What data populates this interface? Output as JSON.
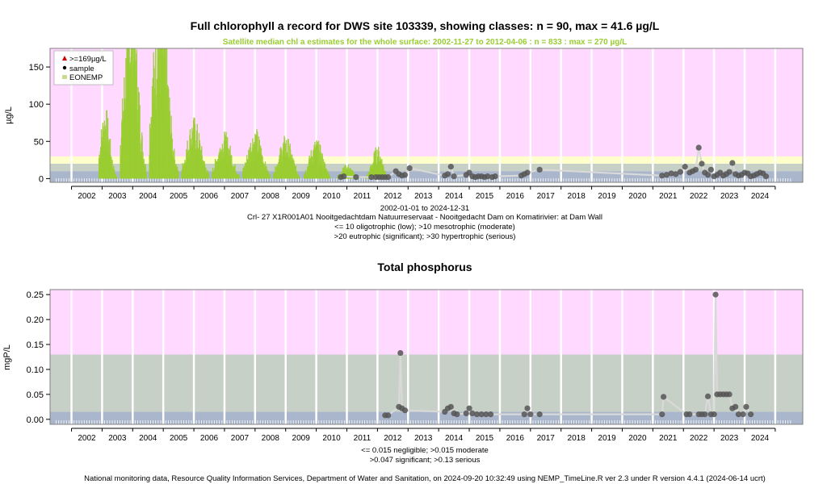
{
  "footer": "National monitoring data, Resource Quality Information Services, Department of Water and Sanitation, on 2024-09-20 10:32:49 using NEMP_TimeLine.R ver 2.3 under R version 4.4.1 (2024-06-14 ucrt)",
  "colors": {
    "background_band": "#ffd9ff",
    "hypertrophic_band": "#ffffcc",
    "oligotrophic_band": "#a9b6cc",
    "moderate_band": "#c7d0c6",
    "satellite": "#9acd32",
    "sample": "#555555",
    "line": "#d9d9d9"
  },
  "chart_data": [
    {
      "type": "line",
      "title": "Full chlorophyll a record for DWS site 103339, showing classes: n = 90, max = 41.6 µg/L",
      "subtitle": "Satellite median chl a estimates for the whole surface: 2002-11-27 to 2012-04-06 : n = 833 : max = 270 µg/L",
      "ylabel": "µg/L",
      "xlim": [
        2001.3,
        2025.9
      ],
      "ylim": [
        -5,
        175
      ],
      "yticks": [
        0,
        50,
        100,
        150
      ],
      "xticks": [
        "2002",
        "2003",
        "2004",
        "2005",
        "2006",
        "2007",
        "2008",
        "2009",
        "2010",
        "2011",
        "2012",
        "2013",
        "2014",
        "2015",
        "2016",
        "2017",
        "2018",
        "2019",
        "2020",
        "2021",
        "2022",
        "2023",
        "2024"
      ],
      "legend": {
        "position": "top-left",
        "items": [
          {
            "label": ">=169µg/L",
            "symbol": "triangle",
            "color": "#cc0000"
          },
          {
            "label": "sample",
            "symbol": "dot",
            "color": "#000000"
          },
          {
            "label": "EONEMP",
            "symbol": "square",
            "color": "#c8dc8c"
          }
        ]
      },
      "class_bands": [
        {
          "from": 0,
          "to": 10,
          "class": "oligotrophic"
        },
        {
          "from": 10,
          "to": 20,
          "class": "mesotrophic"
        },
        {
          "from": 20,
          "to": 30,
          "class": "eutrophic"
        },
        {
          "from": 30,
          "to": 175,
          "class": "hypertrophic"
        }
      ],
      "caption": [
        "2002-01-01 to 2024-12-31",
        "Crl- 27 X1R001A01 Nooitgedachtdam Natuurreservaat - Nooitgedacht Dam on Komatirivier: at Dam Wall",
        "<= 10 oligotrophic (low); >10 mesotrophic (moderate)",
        ">20 eutrophic (significant); >30 hypertrophic (serious)"
      ],
      "satellite_seasons": [
        {
          "start": 2002.9,
          "end": 2003.5,
          "peak": 100,
          "peak_at": 2003.1
        },
        {
          "start": 2003.6,
          "end": 2004.45,
          "peak": 270,
          "peak_at": 2003.95
        },
        {
          "start": 2004.55,
          "end": 2005.5,
          "peak": 270,
          "peak_at": 2004.9
        },
        {
          "start": 2005.6,
          "end": 2006.5,
          "peak": 85,
          "peak_at": 2006.0
        },
        {
          "start": 2006.6,
          "end": 2007.5,
          "peak": 65,
          "peak_at": 2007.0
        },
        {
          "start": 2007.6,
          "end": 2008.5,
          "peak": 70,
          "peak_at": 2008.0
        },
        {
          "start": 2008.6,
          "end": 2009.45,
          "peak": 60,
          "peak_at": 2009.0
        },
        {
          "start": 2009.6,
          "end": 2010.45,
          "peak": 55,
          "peak_at": 2010.0
        },
        {
          "start": 2010.7,
          "end": 2011.4,
          "peak": 20,
          "peak_at": 2011.0
        },
        {
          "start": 2011.6,
          "end": 2012.27,
          "peak": 45,
          "peak_at": 2012.0
        }
      ],
      "samples": [
        {
          "x": 2010.8,
          "y": 2
        },
        {
          "x": 2010.9,
          "y": 3
        },
        {
          "x": 2011.3,
          "y": 2
        },
        {
          "x": 2011.8,
          "y": 2
        },
        {
          "x": 2011.95,
          "y": 2
        },
        {
          "x": 2012.05,
          "y": 2
        },
        {
          "x": 2012.15,
          "y": 2
        },
        {
          "x": 2012.25,
          "y": 2
        },
        {
          "x": 2012.35,
          "y": 2
        },
        {
          "x": 2012.6,
          "y": 10
        },
        {
          "x": 2012.7,
          "y": 6
        },
        {
          "x": 2012.8,
          "y": 4
        },
        {
          "x": 2012.9,
          "y": 5
        },
        {
          "x": 2013.05,
          "y": 14
        },
        {
          "x": 2014.2,
          "y": 4
        },
        {
          "x": 2014.3,
          "y": 6
        },
        {
          "x": 2014.4,
          "y": 16
        },
        {
          "x": 2014.5,
          "y": 3
        },
        {
          "x": 2014.9,
          "y": 5
        },
        {
          "x": 2015.0,
          "y": 8
        },
        {
          "x": 2015.1,
          "y": 3
        },
        {
          "x": 2015.2,
          "y": 2
        },
        {
          "x": 2015.3,
          "y": 3
        },
        {
          "x": 2015.4,
          "y": 3
        },
        {
          "x": 2015.5,
          "y": 2
        },
        {
          "x": 2015.6,
          "y": 3
        },
        {
          "x": 2015.75,
          "y": 2
        },
        {
          "x": 2015.85,
          "y": 3
        },
        {
          "x": 2016.7,
          "y": 4
        },
        {
          "x": 2016.8,
          "y": 6
        },
        {
          "x": 2016.9,
          "y": 8
        },
        {
          "x": 2017.3,
          "y": 12
        },
        {
          "x": 2021.3,
          "y": 4
        },
        {
          "x": 2021.45,
          "y": 5
        },
        {
          "x": 2021.6,
          "y": 7
        },
        {
          "x": 2021.75,
          "y": 6
        },
        {
          "x": 2021.9,
          "y": 9
        },
        {
          "x": 2022.05,
          "y": 16
        },
        {
          "x": 2022.2,
          "y": 8
        },
        {
          "x": 2022.3,
          "y": 10
        },
        {
          "x": 2022.4,
          "y": 12
        },
        {
          "x": 2022.5,
          "y": 41.6
        },
        {
          "x": 2022.6,
          "y": 20
        },
        {
          "x": 2022.7,
          "y": 8
        },
        {
          "x": 2022.8,
          "y": 5
        },
        {
          "x": 2022.9,
          "y": 12
        },
        {
          "x": 2023.0,
          "y": 3
        },
        {
          "x": 2023.1,
          "y": 5
        },
        {
          "x": 2023.2,
          "y": 8
        },
        {
          "x": 2023.3,
          "y": 4
        },
        {
          "x": 2023.4,
          "y": 6
        },
        {
          "x": 2023.5,
          "y": 9
        },
        {
          "x": 2023.6,
          "y": 21
        },
        {
          "x": 2023.7,
          "y": 6
        },
        {
          "x": 2023.8,
          "y": 4
        },
        {
          "x": 2023.9,
          "y": 5
        },
        {
          "x": 2024.0,
          "y": 8
        },
        {
          "x": 2024.1,
          "y": 7
        },
        {
          "x": 2024.2,
          "y": 3
        },
        {
          "x": 2024.3,
          "y": 4
        },
        {
          "x": 2024.4,
          "y": 6
        },
        {
          "x": 2024.5,
          "y": 8
        },
        {
          "x": 2024.6,
          "y": 7
        },
        {
          "x": 2024.7,
          "y": 3
        }
      ]
    },
    {
      "type": "line",
      "title": "Total phosphorus",
      "ylabel": "mgP/L",
      "xlim": [
        2001.3,
        2025.9
      ],
      "ylim": [
        -0.01,
        0.26
      ],
      "yticks": [
        0.0,
        0.05,
        0.1,
        0.15,
        0.2,
        0.25
      ],
      "ytick_labels": [
        "0.00",
        "0.05",
        "0.10",
        "0.15",
        "0.20",
        "0.25"
      ],
      "xticks": [
        "2002",
        "2003",
        "2004",
        "2005",
        "2006",
        "2007",
        "2008",
        "2009",
        "2010",
        "2011",
        "2012",
        "2013",
        "2014",
        "2015",
        "2016",
        "2017",
        "2018",
        "2019",
        "2020",
        "2021",
        "2022",
        "2023",
        "2024"
      ],
      "class_bands": [
        {
          "from": 0,
          "to": 0.015,
          "class": "negligible"
        },
        {
          "from": 0.015,
          "to": 0.13,
          "class": "moderate-significant"
        },
        {
          "from": 0.13,
          "to": 0.26,
          "class": "serious"
        }
      ],
      "caption": [
        "<= 0.015 negligible; >0.015 moderate",
        ">0.047 significant; >0.13 serious"
      ],
      "samples": [
        {
          "x": 2012.25,
          "y": 0.008
        },
        {
          "x": 2012.35,
          "y": 0.008
        },
        {
          "x": 2012.7,
          "y": 0.025
        },
        {
          "x": 2012.75,
          "y": 0.133
        },
        {
          "x": 2012.8,
          "y": 0.022
        },
        {
          "x": 2012.9,
          "y": 0.018
        },
        {
          "x": 2014.2,
          "y": 0.015
        },
        {
          "x": 2014.3,
          "y": 0.022
        },
        {
          "x": 2014.4,
          "y": 0.025
        },
        {
          "x": 2014.5,
          "y": 0.012
        },
        {
          "x": 2014.6,
          "y": 0.01
        },
        {
          "x": 2014.9,
          "y": 0.012
        },
        {
          "x": 2015.0,
          "y": 0.022
        },
        {
          "x": 2015.1,
          "y": 0.012
        },
        {
          "x": 2015.25,
          "y": 0.01
        },
        {
          "x": 2015.4,
          "y": 0.01
        },
        {
          "x": 2015.55,
          "y": 0.01
        },
        {
          "x": 2015.7,
          "y": 0.01
        },
        {
          "x": 2016.8,
          "y": 0.01
        },
        {
          "x": 2016.9,
          "y": 0.022
        },
        {
          "x": 2017.0,
          "y": 0.01
        },
        {
          "x": 2017.3,
          "y": 0.01
        },
        {
          "x": 2021.3,
          "y": 0.01
        },
        {
          "x": 2021.35,
          "y": 0.045
        },
        {
          "x": 2022.1,
          "y": 0.01
        },
        {
          "x": 2022.2,
          "y": 0.01
        },
        {
          "x": 2022.5,
          "y": 0.01
        },
        {
          "x": 2022.6,
          "y": 0.01
        },
        {
          "x": 2022.7,
          "y": 0.01
        },
        {
          "x": 2022.8,
          "y": 0.046
        },
        {
          "x": 2022.9,
          "y": 0.01
        },
        {
          "x": 2023.0,
          "y": 0.01
        },
        {
          "x": 2023.05,
          "y": 0.25
        },
        {
          "x": 2023.1,
          "y": 0.05
        },
        {
          "x": 2023.2,
          "y": 0.05
        },
        {
          "x": 2023.3,
          "y": 0.05
        },
        {
          "x": 2023.4,
          "y": 0.05
        },
        {
          "x": 2023.5,
          "y": 0.05
        },
        {
          "x": 2023.6,
          "y": 0.022
        },
        {
          "x": 2023.7,
          "y": 0.025
        },
        {
          "x": 2023.8,
          "y": 0.01
        },
        {
          "x": 2023.95,
          "y": 0.01
        },
        {
          "x": 2024.05,
          "y": 0.025
        },
        {
          "x": 2024.2,
          "y": 0.01
        }
      ]
    }
  ]
}
